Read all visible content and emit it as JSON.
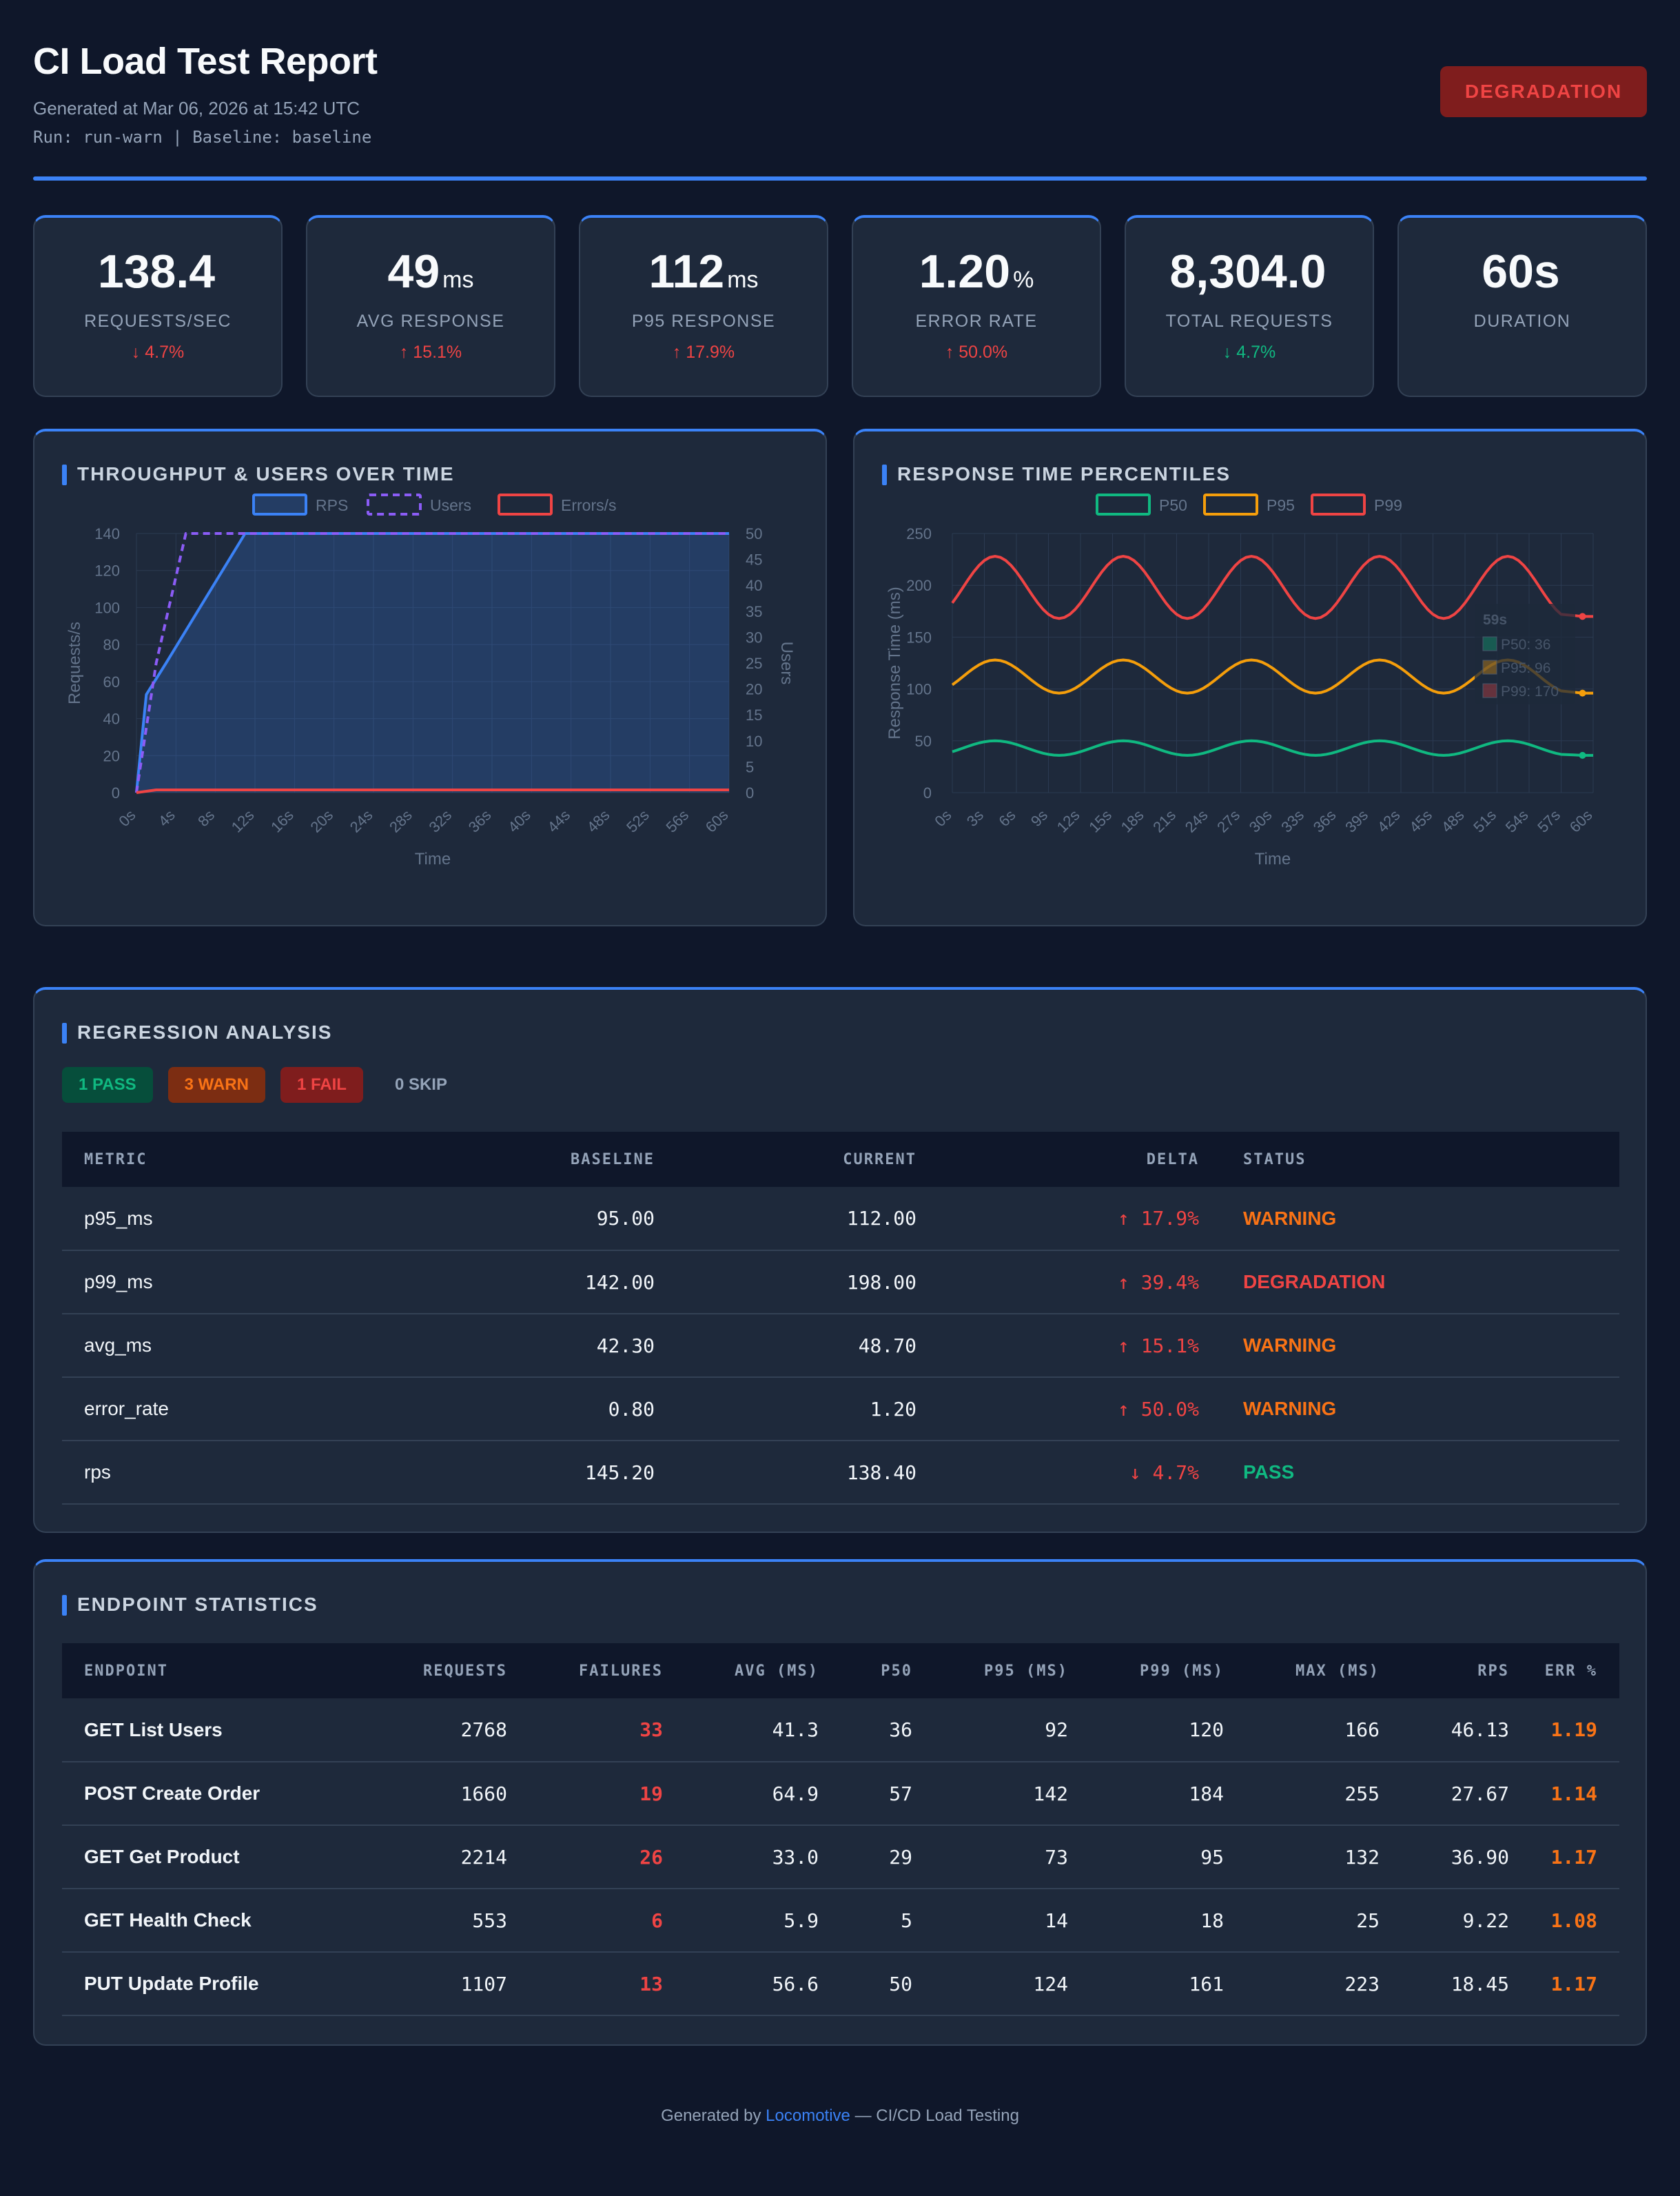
{
  "header": {
    "title": "CI Load Test Report",
    "generated": "Generated at Mar 06, 2026 at 15:42 UTC",
    "run_line": "Run: run-warn | Baseline: baseline",
    "status": "DEGRADATION"
  },
  "cards": [
    {
      "value": "138.4",
      "unit": "",
      "label": "REQUESTS/SEC",
      "delta": "↓ 4.7%"
    },
    {
      "value": "49",
      "unit": "ms",
      "label": "AVG RESPONSE",
      "delta": "↑ 15.1%"
    },
    {
      "value": "112",
      "unit": "ms",
      "label": "P95 RESPONSE",
      "delta": "↑ 17.9%"
    },
    {
      "value": "1.20",
      "unit": "%",
      "label": "ERROR RATE",
      "delta": "↑ 50.0%"
    },
    {
      "value": "8,304.0",
      "unit": "",
      "label": "TOTAL REQUESTS",
      "delta": "↓ 4.7%"
    },
    {
      "value": "60s",
      "unit": "",
      "label": "DURATION",
      "delta": ""
    }
  ],
  "throughput_panel": {
    "title": "THROUGHPUT & USERS OVER TIME"
  },
  "percentiles_panel": {
    "title": "RESPONSE TIME PERCENTILES"
  },
  "chart_data": [
    {
      "type": "line",
      "title": "",
      "xlabel": "Time",
      "ylabel": "Requests/s",
      "y2label": "Users",
      "ylim": [
        0,
        140
      ],
      "y2lim": [
        0,
        50
      ],
      "x_ticks": [
        "0s",
        "4s",
        "8s",
        "12s",
        "16s",
        "20s",
        "24s",
        "28s",
        "32s",
        "36s",
        "40s",
        "44s",
        "48s",
        "52s",
        "56s",
        "60s"
      ],
      "y_ticks": [
        0,
        20,
        40,
        60,
        80,
        100,
        120,
        140
      ],
      "y2_ticks": [
        0,
        5,
        10,
        15,
        20,
        25,
        30,
        35,
        40,
        45,
        50
      ],
      "legend": "top",
      "grid": true,
      "series": [
        {
          "name": "RPS",
          "axis": "left",
          "color": "#3b82f6",
          "style": "solid-area",
          "x": [
            0,
            1,
            3,
            11,
            60
          ],
          "values": [
            0,
            53,
            70,
            140,
            140
          ]
        },
        {
          "name": "Users",
          "axis": "right",
          "color": "#8b5cf6",
          "style": "dashed",
          "x": [
            0,
            2,
            5,
            60
          ],
          "values": [
            0,
            25,
            50,
            50
          ]
        },
        {
          "name": "Errors/s",
          "axis": "left",
          "color": "#ef4444",
          "style": "solid",
          "x": [
            0,
            2,
            60
          ],
          "values": [
            0,
            1.5,
            1.5
          ]
        }
      ]
    },
    {
      "type": "line",
      "title": "",
      "xlabel": "Time",
      "ylabel": "Response Time (ms)",
      "ylim": [
        0,
        250
      ],
      "x_ticks": [
        "0s",
        "3s",
        "6s",
        "9s",
        "12s",
        "15s",
        "18s",
        "21s",
        "24s",
        "27s",
        "30s",
        "33s",
        "36s",
        "39s",
        "42s",
        "45s",
        "48s",
        "51s",
        "54s",
        "57s",
        "60s"
      ],
      "y_ticks": [
        0,
        50,
        100,
        150,
        200,
        250
      ],
      "legend": "top",
      "grid": true,
      "series": [
        {
          "name": "P50",
          "color": "#10b981",
          "base": 43,
          "amp": 7
        },
        {
          "name": "P95",
          "color": "#f59e0b",
          "base": 112,
          "amp": 16
        },
        {
          "name": "P99",
          "color": "#ef4444",
          "base": 198,
          "amp": 30
        }
      ],
      "period_s": 12,
      "last_point": {
        "x": "59s",
        "P50": 36,
        "P95": 96,
        "P99": 170
      },
      "tooltip": {
        "title": "59s",
        "lines": [
          "P50: 36",
          "P95: 96",
          "P99: 170"
        ]
      }
    }
  ],
  "regression": {
    "title": "REGRESSION ANALYSIS",
    "badges": {
      "pass": "1 PASS",
      "warn": "3 WARN",
      "fail": "1 FAIL",
      "skip": "0 SKIP"
    },
    "headers": [
      "METRIC",
      "BASELINE",
      "CURRENT",
      "DELTA",
      "STATUS"
    ],
    "rows": [
      {
        "metric": "p95_ms",
        "baseline": "95.00",
        "current": "112.00",
        "delta": "↑ 17.9%",
        "status": "WARNING"
      },
      {
        "metric": "p99_ms",
        "baseline": "142.00",
        "current": "198.00",
        "delta": "↑ 39.4%",
        "status": "DEGRADATION"
      },
      {
        "metric": "avg_ms",
        "baseline": "42.30",
        "current": "48.70",
        "delta": "↑ 15.1%",
        "status": "WARNING"
      },
      {
        "metric": "error_rate",
        "baseline": "0.80",
        "current": "1.20",
        "delta": "↑ 50.0%",
        "status": "WARNING"
      },
      {
        "metric": "rps",
        "baseline": "145.20",
        "current": "138.40",
        "delta": "↓ 4.7%",
        "status": "PASS"
      }
    ]
  },
  "endpoints": {
    "title": "ENDPOINT STATISTICS",
    "headers": [
      "ENDPOINT",
      "REQUESTS",
      "FAILURES",
      "AVG (MS)",
      "P50",
      "P95 (MS)",
      "P99 (MS)",
      "MAX (MS)",
      "RPS",
      "ERR %"
    ],
    "rows": [
      {
        "endpoint": "GET List Users",
        "requests": "2768",
        "failures": "33",
        "avg": "41.3",
        "p50": "36",
        "p95": "92",
        "p99": "120",
        "max": "166",
        "rps": "46.13",
        "err": "1.19"
      },
      {
        "endpoint": "POST Create Order",
        "requests": "1660",
        "failures": "19",
        "avg": "64.9",
        "p50": "57",
        "p95": "142",
        "p99": "184",
        "max": "255",
        "rps": "27.67",
        "err": "1.14"
      },
      {
        "endpoint": "GET Get Product",
        "requests": "2214",
        "failures": "26",
        "avg": "33.0",
        "p50": "29",
        "p95": "73",
        "p99": "95",
        "max": "132",
        "rps": "36.90",
        "err": "1.17"
      },
      {
        "endpoint": "GET Health Check",
        "requests": "553",
        "failures": "6",
        "avg": "5.9",
        "p50": "5",
        "p95": "14",
        "p99": "18",
        "max": "25",
        "rps": "9.22",
        "err": "1.08"
      },
      {
        "endpoint": "PUT Update Profile",
        "requests": "1107",
        "failures": "13",
        "avg": "56.6",
        "p50": "50",
        "p95": "124",
        "p99": "161",
        "max": "223",
        "rps": "18.45",
        "err": "1.17"
      }
    ]
  },
  "footer": {
    "prefix": "Generated by ",
    "brand": "Locomotive",
    "suffix": " — CI/CD Load Testing"
  }
}
